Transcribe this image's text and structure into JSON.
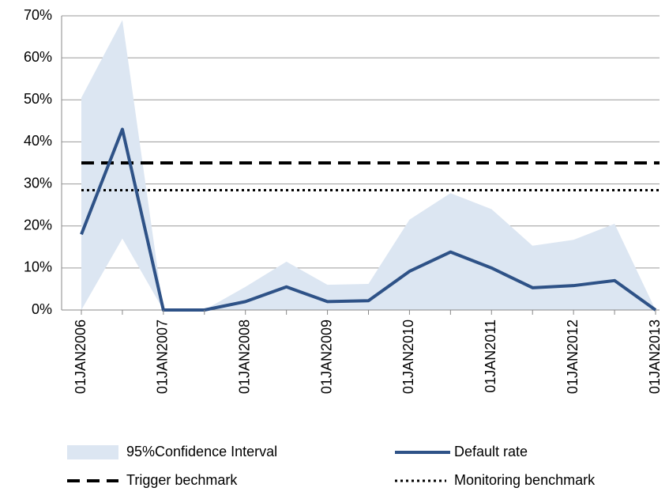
{
  "chart_data": {
    "type": "line",
    "categories": [
      "01JAN2006",
      null,
      "01JAN2007",
      null,
      "01JAN2008",
      null,
      "01JAN2009",
      null,
      "01JAN2010",
      null,
      "01JAN2011",
      null,
      "01JAN2012",
      null,
      "01JAN2013"
    ],
    "band": {
      "name": "95%Confidence Interval",
      "color": "#dce6f2",
      "upper": [
        50.5,
        69,
        0,
        0,
        5.5,
        11.5,
        6,
        6.2,
        21.5,
        27.8,
        24,
        15.3,
        16.7,
        20.5,
        0
      ],
      "lower": [
        0,
        17,
        0,
        0,
        0,
        0,
        0,
        0,
        0,
        0,
        0,
        0,
        0,
        0,
        0
      ]
    },
    "series": [
      {
        "name": "Default rate",
        "color": "#2e5287",
        "values": [
          18,
          43,
          0,
          0,
          2,
          5.5,
          2,
          2.2,
          9.2,
          13.8,
          10,
          5.3,
          5.8,
          7,
          0
        ]
      }
    ],
    "reference_lines": [
      {
        "name": "Trigger bechmark",
        "value": 35,
        "style": "dashed",
        "color": "#000000"
      },
      {
        "name": "Monitoring benchmark",
        "value": 28.5,
        "style": "dotted",
        "color": "#000000"
      }
    ],
    "ylim": [
      0,
      70
    ],
    "yticks": [
      {
        "value": 0,
        "label": "0%"
      },
      {
        "value": 10,
        "label": "10%"
      },
      {
        "value": 20,
        "label": "20%"
      },
      {
        "value": 30,
        "label": "30%"
      },
      {
        "value": 40,
        "label": "40%"
      },
      {
        "value": 50,
        "label": "50%"
      },
      {
        "value": 60,
        "label": "60%"
      },
      {
        "value": 70,
        "label": "70%"
      }
    ],
    "grid": true
  }
}
